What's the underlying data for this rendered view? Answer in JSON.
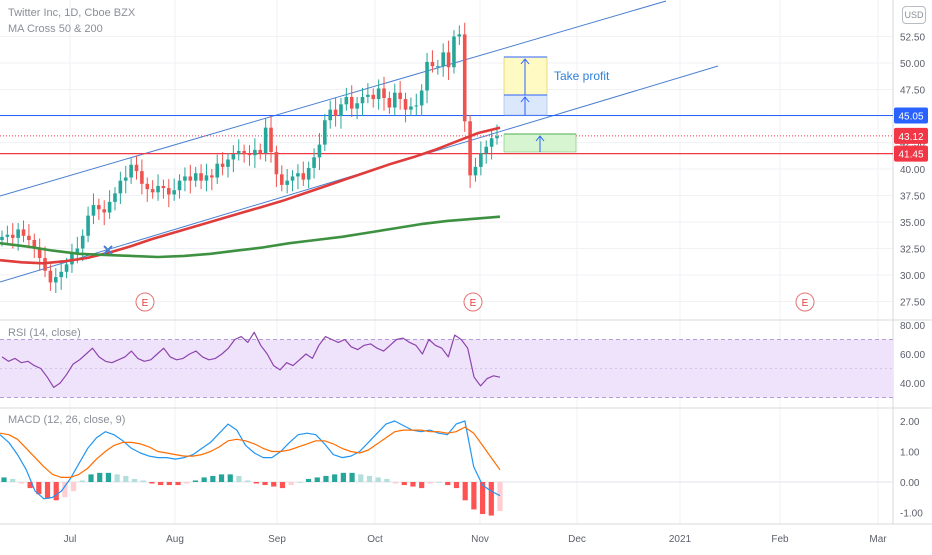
{
  "legend": {
    "title": "Twitter Inc, 1D, Cboe BZX",
    "indicator": "MA Cross 50 & 200",
    "rsi": "RSI (14, close)",
    "macd": "MACD (12, 26, close, 9)"
  },
  "currency_button": "USD",
  "annotation": {
    "take_profit": "Take profit"
  },
  "colors": {
    "up": "#26a69a",
    "down": "#ef5350",
    "ma50": "#e03c3c",
    "ma200": "#3d9140",
    "channel": "#4a7fd1",
    "rsi": "#8e44ad",
    "rsi_bg": "#efe3fb",
    "macd": "#2196f3",
    "signal": "#ff6d00",
    "price_blue": "#2962ff",
    "price_red": "#f23645"
  },
  "chart_data": [
    {
      "type": "candlestick",
      "title": "Twitter Inc, 1D, Cboe BZX",
      "indicators": [
        "MA Cross 50 & 200"
      ],
      "x_ticks": [
        "Jul",
        "Aug",
        "Sep",
        "Oct",
        "Nov",
        "Dec",
        "2021",
        "Feb",
        "Mar"
      ],
      "y_ticks": [
        "52.50",
        "50.00",
        "47.50",
        "45.00",
        "42.50",
        "40.00",
        "37.50",
        "35.00",
        "32.50",
        "30.00",
        "27.50"
      ],
      "ylim": [
        26,
        54
      ],
      "axis_labels": [
        "45.05",
        "43.12",
        "41.45"
      ],
      "horizontal_levels": [
        45.05,
        41.45
      ],
      "last_price": 43.12,
      "earnings_markers": [
        "E",
        "E",
        "E"
      ],
      "earnings_months": [
        "Jul",
        "Oct",
        "Feb"
      ],
      "close_series": [
        33.6,
        33.8,
        33.5,
        34.3,
        33.7,
        33.3,
        32.6,
        31.6,
        30.4,
        29.3,
        29.8,
        30.3,
        31.0,
        32.1,
        32.5,
        33.7,
        35.6,
        36.6,
        36.2,
        35.9,
        36.9,
        37.7,
        38.9,
        39.2,
        40.4,
        39.8,
        38.6,
        38.1,
        37.8,
        38.4,
        38.2,
        37.6,
        38.0,
        38.9,
        39.3,
        38.9,
        39.6,
        38.9,
        39.4,
        39.2,
        40.5,
        40.2,
        40.9,
        41.4,
        41.7,
        41.4,
        41.3,
        41.8,
        41.5,
        43.9,
        41.6,
        39.5,
        38.5,
        38.9,
        39.3,
        39.6,
        39.0,
        40.1,
        41.1,
        42.3,
        44.6,
        45.6,
        45.0,
        46.1,
        46.8,
        45.7,
        46.2,
        46.8,
        47.0,
        46.6,
        47.6,
        46.7,
        45.8,
        47.2,
        46.6,
        45.6,
        45.9,
        46.0,
        47.4,
        50.1,
        49.7,
        49.7,
        51.0,
        49.6,
        52.5,
        52.7,
        44.5,
        39.4,
        40.2,
        41.5,
        42.1,
        42.9,
        43.1
      ],
      "ma50_series": [
        31.4,
        31.2,
        31.1,
        31.3,
        31.6,
        32.1,
        32.7,
        33.4,
        34.0,
        34.6,
        35.2,
        35.8,
        36.4,
        37.0,
        37.7,
        38.4,
        39.1,
        39.8,
        40.5,
        41.1,
        41.8,
        42.6,
        43.4,
        43.9
      ],
      "ma200_series": [
        33.0,
        32.7,
        32.3,
        32.0,
        31.9,
        31.8,
        31.7,
        31.8,
        32.0,
        32.3,
        32.6,
        33.0,
        33.3,
        33.6,
        34.0,
        34.4,
        34.8,
        35.1,
        35.3,
        35.5
      ]
    },
    {
      "type": "line",
      "title": "RSI (14, close)",
      "y_ticks": [
        "80.00",
        "60.00",
        "40.00"
      ],
      "ylim": [
        28,
        82
      ],
      "bands": [
        70,
        30
      ],
      "values": [
        58,
        55,
        57,
        54,
        55,
        52,
        50,
        44,
        37,
        40,
        46,
        53,
        56,
        60,
        64,
        58,
        55,
        54,
        56,
        58,
        62,
        57,
        55,
        56,
        60,
        64,
        58,
        56,
        57,
        60,
        62,
        58,
        56,
        57,
        60,
        64,
        70,
        72,
        68,
        75,
        66,
        60,
        52,
        49,
        54,
        52,
        56,
        60,
        57,
        66,
        72,
        70,
        68,
        70,
        65,
        63,
        66,
        67,
        64,
        62,
        66,
        70,
        71,
        68,
        66,
        60,
        70,
        66,
        64,
        58,
        73,
        70,
        64,
        44,
        38,
        43,
        45,
        44
      ]
    },
    {
      "type": "bar+line",
      "title": "MACD (12, 26, close, 9)",
      "y_ticks": [
        "2.00",
        "1.00",
        "0.00",
        "-1.00"
      ],
      "ylim": [
        -1.4,
        2.3
      ],
      "macd": [
        1.55,
        1.3,
        0.9,
        0.4,
        -0.3,
        -0.55,
        -0.5,
        -0.3,
        0.1,
        0.6,
        1.1,
        1.45,
        1.65,
        1.55,
        1.35,
        1.1,
        0.95,
        0.85,
        0.8,
        0.8,
        0.75,
        0.8,
        0.9,
        1.1,
        1.3,
        1.6,
        1.9,
        1.7,
        1.2,
        0.95,
        0.8,
        0.8,
        1.0,
        1.3,
        1.55,
        1.6,
        1.55,
        1.25,
        0.9,
        0.8,
        0.85,
        1.0,
        1.3,
        1.6,
        1.9,
        2.0,
        1.85,
        1.7,
        1.65,
        1.7,
        1.6,
        1.55,
        1.9,
        2.0,
        0.5,
        -0.1,
        -0.3,
        -0.45
      ],
      "signal": [
        1.6,
        1.55,
        1.4,
        1.1,
        0.8,
        0.5,
        0.25,
        0.15,
        0.15,
        0.25,
        0.45,
        0.75,
        1.0,
        1.2,
        1.3,
        1.3,
        1.25,
        1.15,
        1.0,
        0.95,
        0.9,
        0.85,
        0.85,
        0.9,
        1.0,
        1.15,
        1.35,
        1.4,
        1.35,
        1.25,
        1.1,
        1.0,
        1.0,
        1.05,
        1.15,
        1.25,
        1.35,
        1.35,
        1.25,
        1.1,
        1.0,
        0.95,
        1.05,
        1.25,
        1.45,
        1.65,
        1.7,
        1.7,
        1.7,
        1.65,
        1.65,
        1.6,
        1.65,
        1.8,
        1.6,
        1.2,
        0.8,
        0.4
      ],
      "histogram": [
        0.15,
        0.1,
        -0.05,
        -0.2,
        -0.4,
        -0.55,
        -0.6,
        -0.5,
        -0.3,
        0.05,
        0.25,
        0.3,
        0.3,
        0.25,
        0.2,
        0.1,
        0.05,
        -0.05,
        -0.1,
        -0.1,
        -0.1,
        -0.05,
        0.05,
        0.15,
        0.2,
        0.25,
        0.25,
        0.2,
        0.05,
        -0.05,
        -0.1,
        -0.15,
        -0.2,
        -0.1,
        0.0,
        0.1,
        0.15,
        0.2,
        0.25,
        0.3,
        0.3,
        0.25,
        0.2,
        0.15,
        0.1,
        -0.05,
        -0.1,
        -0.15,
        -0.2,
        -0.05,
        0.0,
        -0.1,
        -0.2,
        -0.6,
        -0.9,
        -1.05,
        -1.1,
        -0.95
      ]
    }
  ]
}
